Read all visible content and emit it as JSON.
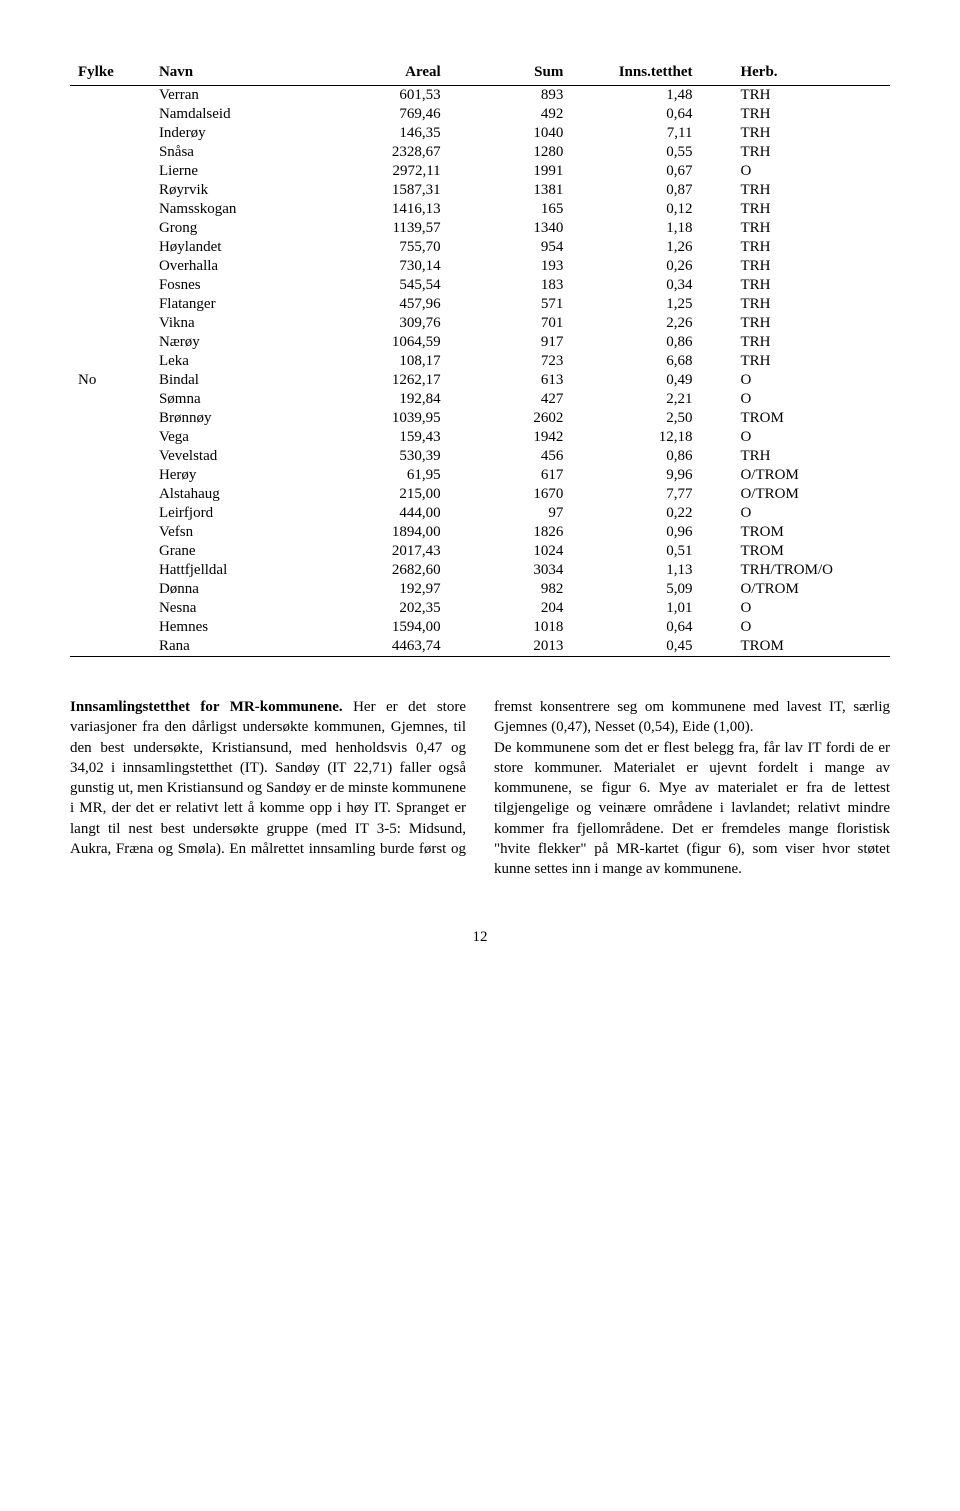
{
  "table": {
    "headers": [
      "Fylke",
      "Navn",
      "Areal",
      "Sum",
      "Inns.tetthet",
      "Herb."
    ],
    "rows": [
      [
        "",
        "Verran",
        "601,53",
        "893",
        "1,48",
        "TRH"
      ],
      [
        "",
        "Namdalseid",
        "769,46",
        "492",
        "0,64",
        "TRH"
      ],
      [
        "",
        "Inderøy",
        "146,35",
        "1040",
        "7,11",
        "TRH"
      ],
      [
        "",
        "Snåsa",
        "2328,67",
        "1280",
        "0,55",
        "TRH"
      ],
      [
        "",
        "Lierne",
        "2972,11",
        "1991",
        "0,67",
        "O"
      ],
      [
        "",
        "Røyrvik",
        "1587,31",
        "1381",
        "0,87",
        "TRH"
      ],
      [
        "",
        "Namsskogan",
        "1416,13",
        "165",
        "0,12",
        "TRH"
      ],
      [
        "",
        "Grong",
        "1139,57",
        "1340",
        "1,18",
        "TRH"
      ],
      [
        "",
        "Høylandet",
        "755,70",
        "954",
        "1,26",
        "TRH"
      ],
      [
        "",
        "Overhalla",
        "730,14",
        "193",
        "0,26",
        "TRH"
      ],
      [
        "",
        "Fosnes",
        "545,54",
        "183",
        "0,34",
        "TRH"
      ],
      [
        "",
        "Flatanger",
        "457,96",
        "571",
        "1,25",
        "TRH"
      ],
      [
        "",
        "Vikna",
        "309,76",
        "701",
        "2,26",
        "TRH"
      ],
      [
        "",
        "Nærøy",
        "1064,59",
        "917",
        "0,86",
        "TRH"
      ],
      [
        "",
        "Leka",
        "108,17",
        "723",
        "6,68",
        "TRH"
      ],
      [
        "No",
        "Bindal",
        "1262,17",
        "613",
        "0,49",
        "O"
      ],
      [
        "",
        "Sømna",
        "192,84",
        "427",
        "2,21",
        "O"
      ],
      [
        "",
        "Brønnøy",
        "1039,95",
        "2602",
        "2,50",
        "TROM"
      ],
      [
        "",
        "Vega",
        "159,43",
        "1942",
        "12,18",
        "O"
      ],
      [
        "",
        "Vevelstad",
        "530,39",
        "456",
        "0,86",
        "TRH"
      ],
      [
        "",
        "Herøy",
        "61,95",
        "617",
        "9,96",
        "O/TROM"
      ],
      [
        "",
        "Alstahaug",
        "215,00",
        "1670",
        "7,77",
        "O/TROM"
      ],
      [
        "",
        "Leirfjord",
        "444,00",
        "97",
        "0,22",
        "O"
      ],
      [
        "",
        "Vefsn",
        "1894,00",
        "1826",
        "0,96",
        "TROM"
      ],
      [
        "",
        "Grane",
        "2017,43",
        "1024",
        "0,51",
        "TROM"
      ],
      [
        "",
        "Hattfjelldal",
        "2682,60",
        "3034",
        "1,13",
        "TRH/TROM/O"
      ],
      [
        "",
        "Dønna",
        "192,97",
        "982",
        "5,09",
        "O/TROM"
      ],
      [
        "",
        "Nesna",
        "202,35",
        "204",
        "1,01",
        "O"
      ],
      [
        "",
        "Hemnes",
        "1594,00",
        "1018",
        "0,64",
        "O"
      ],
      [
        "",
        "Rana",
        "4463,74",
        "2013",
        "0,45",
        "TROM"
      ]
    ]
  },
  "body": {
    "left_lead": "Innsamlingstetthet for MR-kommunene.",
    "left_rest": " Her er det store variasjoner fra den dårligst undersøkte kommunen, Gjemnes, til den best undersøkte, Kristiansund, med henholdsvis 0,47 og 34,02 i innsamlingstetthet (IT). Sandøy (IT 22,71) faller også gunstig ut, men Kristiansund og Sandøy er de minste kommunene i MR, der det er relativt lett å komme opp i høy IT. Spranget er langt til nest best undersøkte gruppe (med IT 3-5: Midsund, Aukra, Fræna og Smøla). En målrettet innsamling burde først og fremst konsentrere seg om kommunene med lavest IT, særlig Gjemnes (0,47), Nesset (0,54), Eide (1,00).",
    "right": "De kommunene som det er flest belegg fra, får lav IT fordi de er store kommuner. Materialet er ujevnt fordelt i mange av kommunene, se figur 6. Mye av materialet er fra de lettest tilgjengelige og veinære områdene i lavlandet; relativt mindre kommer fra fjellområdene. Det er fremdeles mange floristisk \"hvite flekker\" på MR-kartet (figur 6), som viser hvor støtet kunne settes inn i mange av kommunene."
  },
  "page_number": "12"
}
